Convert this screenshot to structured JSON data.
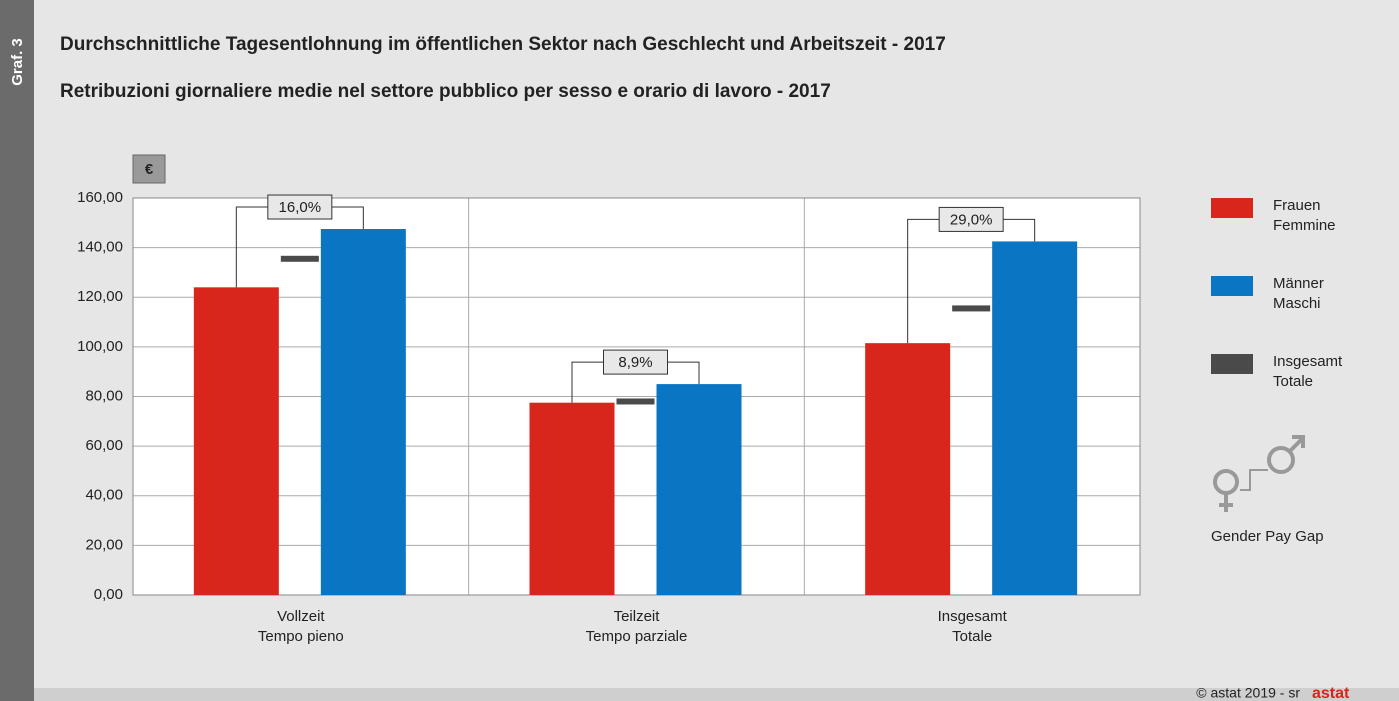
{
  "badge": "Graf. 3",
  "chart_data": {
    "type": "bar",
    "title": "Durchschnittliche Tagesentlohnung im öffentlichen Sektor nach Geschlecht und Arbeitszeit - 2017",
    "subtitle": "Retribuzioni giornaliere medie nel settore pubblico per sesso e orario di lavoro - 2017",
    "unit": "€",
    "categories": [
      [
        "Vollzeit",
        "Tempo pieno"
      ],
      [
        "Teilzeit",
        "Tempo parziale"
      ],
      [
        "Insgesamt",
        "Totale"
      ]
    ],
    "series": [
      {
        "name": [
          "Frauen",
          "Femmine"
        ],
        "color": "#d9261c",
        "values": [
          124,
          77.5,
          101.5
        ]
      },
      {
        "name": [
          "Männer",
          "Maschi"
        ],
        "color": "#0a75c2",
        "values": [
          147.5,
          85,
          142.5
        ]
      },
      {
        "name": [
          "Insgesamt",
          "Totale"
        ],
        "color": "#4a4a4a",
        "values": [
          135.5,
          78,
          115.5
        ]
      }
    ],
    "gap": {
      "name": "Gender Pay Gap",
      "values": [
        16.0,
        8.9,
        29.0
      ],
      "value_labels": [
        "16,0%",
        "8,9%",
        "29,0%"
      ]
    },
    "ylim": [
      0,
      160
    ],
    "yticks": [
      {
        "value": 0,
        "label": "0,00"
      },
      {
        "value": 20,
        "label": "20,00"
      },
      {
        "value": 40,
        "label": "40,00"
      },
      {
        "value": 60,
        "label": "60,00"
      },
      {
        "value": 80,
        "label": "80,00"
      },
      {
        "value": 100,
        "label": "100,00"
      },
      {
        "value": 120,
        "label": "120,00"
      },
      {
        "value": 140,
        "label": "140,00"
      },
      {
        "value": 160,
        "label": "160,00"
      }
    ],
    "grid": true
  },
  "footer": {
    "credit": "© astat 2019 - sr",
    "logo": "astat"
  }
}
